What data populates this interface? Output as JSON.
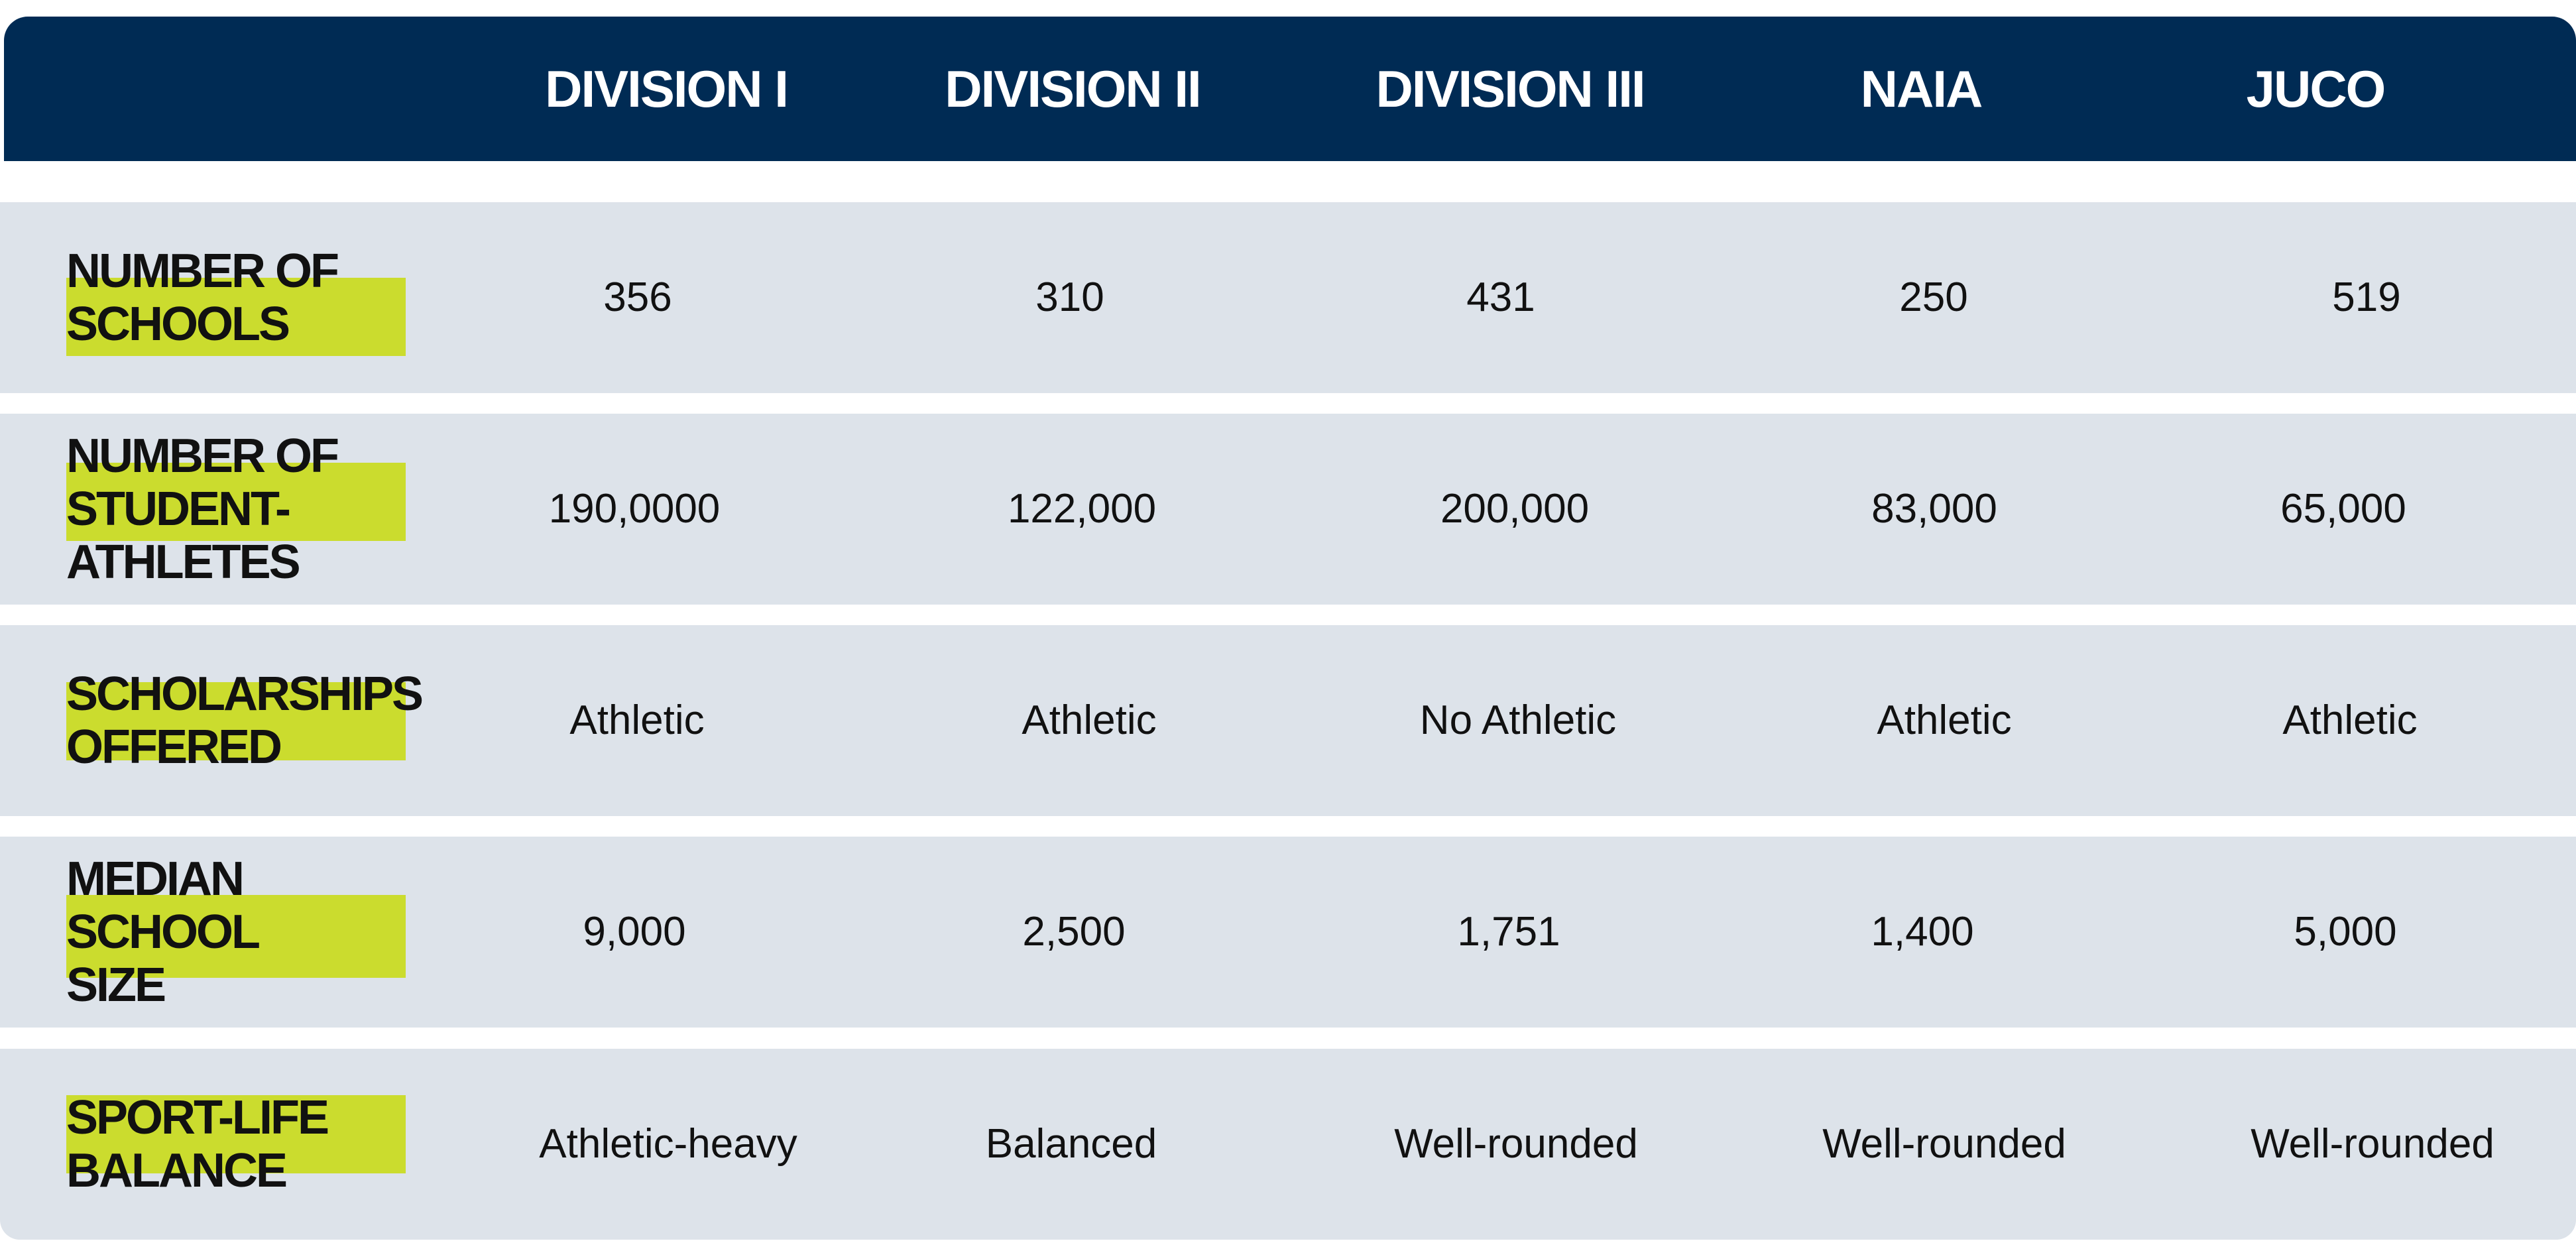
{
  "chart_data": {
    "type": "table",
    "columns": [
      "DIVISION I",
      "DIVISION II",
      "DIVISION III",
      "NAIA",
      "JUCO"
    ],
    "rows": [
      {
        "label": "NUMBER OF\nSCHOOLS",
        "values": [
          "356",
          "310",
          "431",
          "250",
          "519"
        ]
      },
      {
        "label": "NUMBER OF\nSTUDENT-\nATHLETES",
        "values": [
          "190,0000",
          "122,000",
          "200,000",
          "83,000",
          "65,000"
        ]
      },
      {
        "label": "SCHOLARSHIPS\nOFFERED",
        "values": [
          "Athletic",
          "Athletic",
          "No Athletic",
          "Athletic",
          "Athletic"
        ]
      },
      {
        "label": "MEDIAN SCHOOL\nSIZE",
        "values": [
          "9,000",
          "2,500",
          "1,751",
          "1,400",
          "5,000"
        ]
      },
      {
        "label": "SPORT-LIFE\nBALANCE",
        "values": [
          "Athletic-heavy",
          "Balanced",
          "Well-rounded",
          "Well-rounded",
          "Well-rounded"
        ]
      }
    ]
  },
  "colors": {
    "header_background": "#002b54",
    "header_text": "#ffffff",
    "row_background": "#dde3ea",
    "label_highlight": "#cbdc2e",
    "body_text": "#111111"
  }
}
